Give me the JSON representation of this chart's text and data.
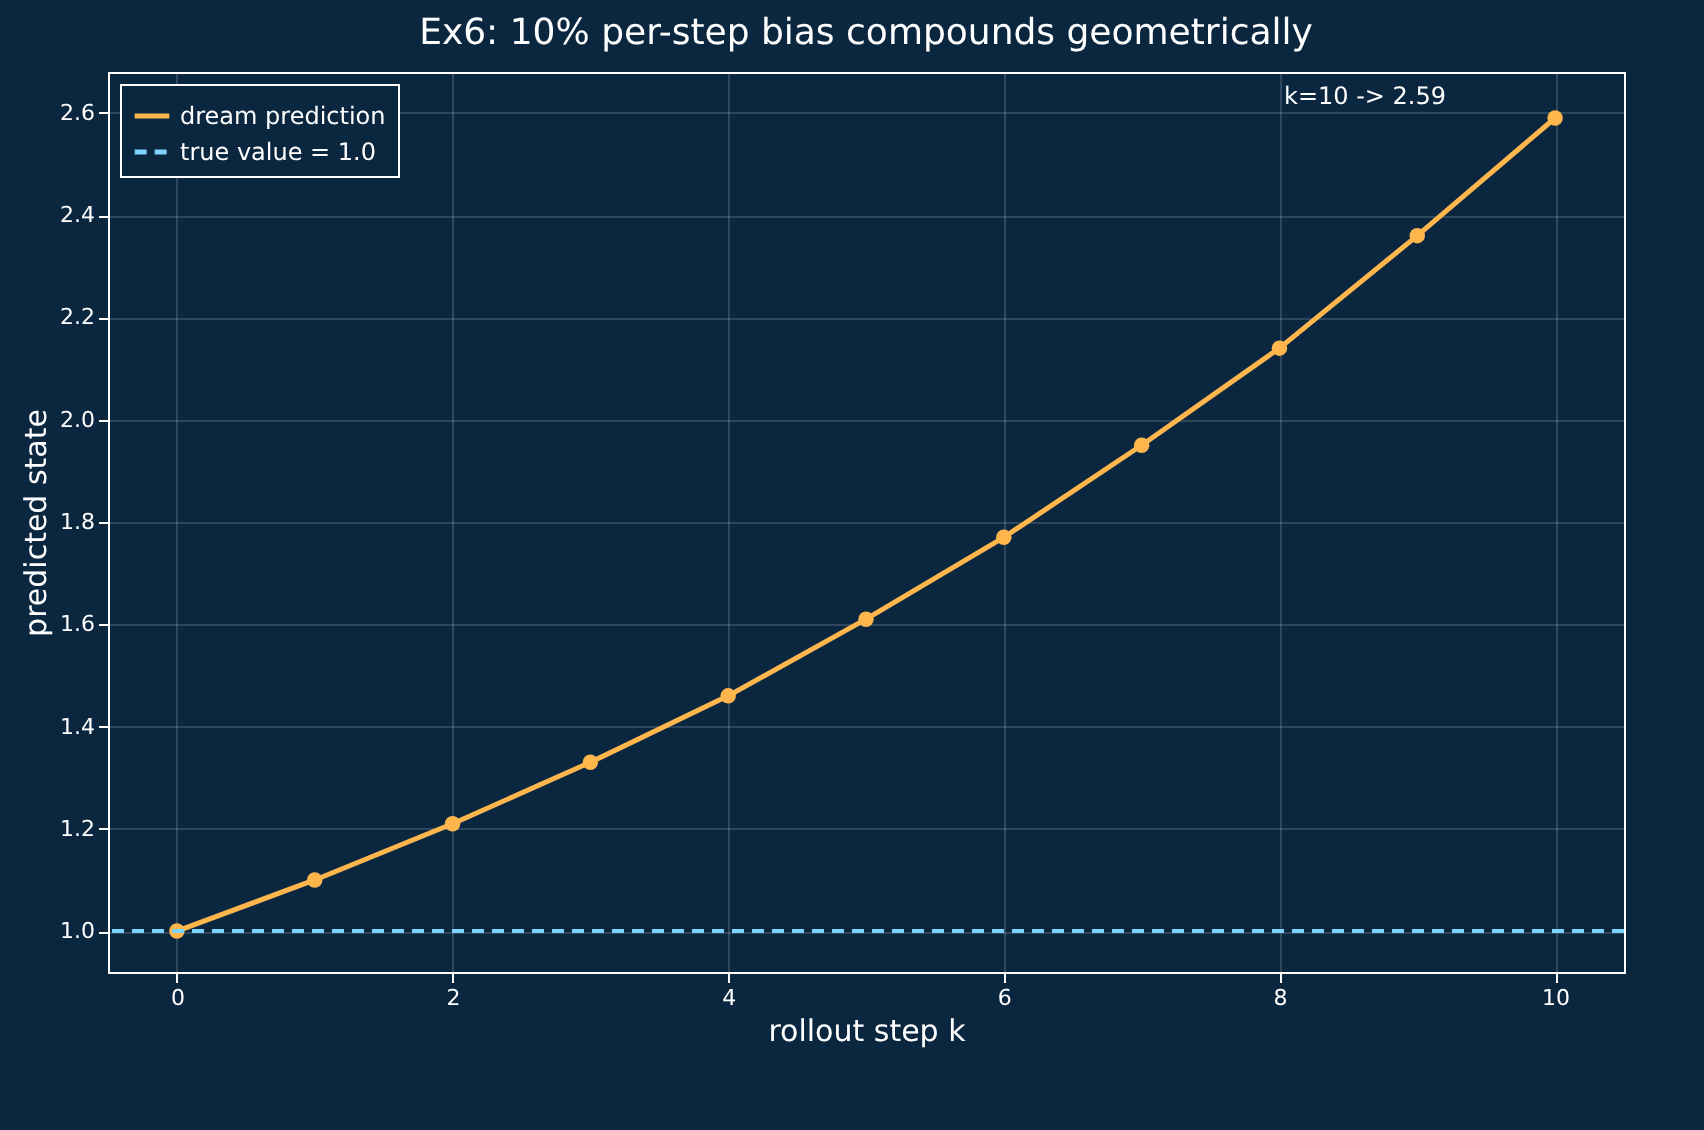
{
  "chart_data": {
    "type": "line",
    "title": "Ex6: 10% per-step bias compounds geometrically",
    "xlabel": "rollout step k",
    "ylabel": "predicted state",
    "x": [
      0,
      1,
      2,
      3,
      4,
      5,
      6,
      7,
      8,
      9,
      10
    ],
    "series": [
      {
        "name": "dream prediction",
        "color": "#ffb74d",
        "values": [
          1.0,
          1.1,
          1.21,
          1.33,
          1.46,
          1.61,
          1.77,
          1.95,
          2.14,
          2.36,
          2.59
        ]
      }
    ],
    "ref_lines": [
      {
        "axis": "y",
        "value": 1.0,
        "label": "true value = 1.0",
        "color": "#7fd3ff",
        "line_style": "dashed"
      }
    ],
    "annotations": [
      "k=10 -> 2.59"
    ],
    "xlim": [
      -0.5,
      10.5
    ],
    "xticks": [
      0,
      2,
      4,
      6,
      8,
      10
    ],
    "ylim": [
      0.92,
      2.68
    ],
    "yticks": [
      {
        "value": 1,
        "label": "1.0"
      },
      1.2,
      1.4,
      1.6,
      1.8,
      {
        "value": 2,
        "label": "2.0"
      },
      2.2,
      2.4,
      2.6
    ],
    "grid": true,
    "legend": "top left",
    "marker": "circle",
    "line_style": "solid"
  }
}
